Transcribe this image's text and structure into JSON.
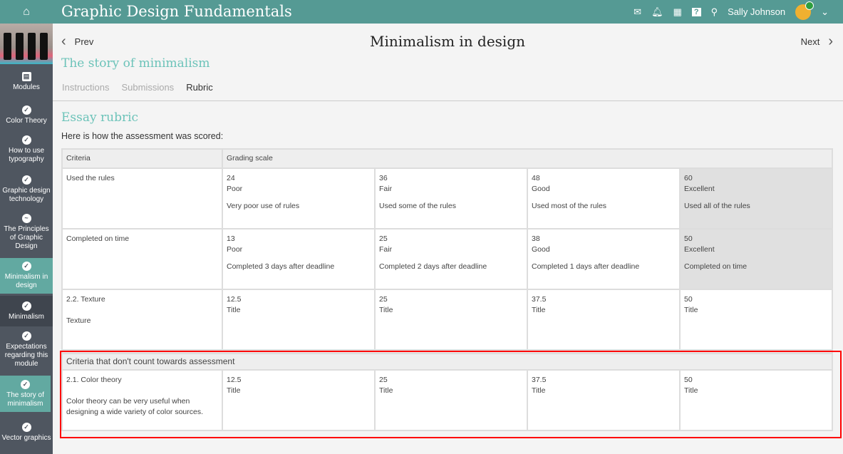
{
  "app": {
    "title": "Graphic Design Fundamentals",
    "user": "Sally Johnson",
    "icons": [
      "home-icon",
      "mail-icon",
      "bell-icon",
      "calendar-icon",
      "help-icon",
      "search-icon",
      "chevron-down-icon"
    ]
  },
  "sidebar": {
    "items": [
      {
        "label": "Modules",
        "icon": "notebook-icon"
      },
      {
        "label": "Color Theory",
        "icon": "check-circle-icon"
      },
      {
        "label": "How to use typography",
        "icon": "check-circle-icon"
      },
      {
        "label": "Graphic design technology",
        "icon": "check-circle-icon"
      },
      {
        "label": "The Principles of Graphic Design",
        "icon": "progress-circle-icon"
      },
      {
        "label": "Minimalism in design",
        "icon": "check-circle-icon"
      },
      {
        "label": "Minimalism",
        "icon": "check-circle-icon"
      },
      {
        "label": "Expectations regarding this module",
        "icon": "check-circle-icon"
      },
      {
        "label": "The story of minimalism",
        "icon": "check-circle-icon"
      },
      {
        "label": "Vector graphics",
        "icon": "check-circle-icon"
      }
    ]
  },
  "nav": {
    "prev": "Prev",
    "next": "Next",
    "page_title": "Minimalism in design",
    "subtitle": "The story of minimalism"
  },
  "tabs": [
    {
      "label": "Instructions"
    },
    {
      "label": "Submissions"
    },
    {
      "label": "Rubric",
      "active": true
    }
  ],
  "rubric": {
    "title": "Essay rubric",
    "intro": "Here is how the assessment was scored:",
    "headers": [
      "Criteria",
      "Grading scale"
    ],
    "rows": [
      {
        "criteria": "Used the rules",
        "desc": "",
        "levels": [
          {
            "score": "24",
            "label": "Poor",
            "desc": "Very poor use of rules"
          },
          {
            "score": "36",
            "label": "Fair",
            "desc": "Used some of the rules"
          },
          {
            "score": "48",
            "label": "Good",
            "desc": "Used most of the rules"
          },
          {
            "score": "60",
            "label": "Excellent",
            "desc": "Used all of the rules",
            "selected": true
          }
        ]
      },
      {
        "criteria": "Completed on time",
        "desc": "",
        "levels": [
          {
            "score": "13",
            "label": "Poor",
            "desc": "Completed 3 days after deadline"
          },
          {
            "score": "25",
            "label": "Fair",
            "desc": "Completed 2 days after deadline"
          },
          {
            "score": "38",
            "label": "Good",
            "desc": "Completed 1 days after deadline"
          },
          {
            "score": "50",
            "label": "Excellent",
            "desc": "Completed on time",
            "selected": true
          }
        ]
      },
      {
        "criteria": "2.2. Texture",
        "desc": "Texture",
        "levels": [
          {
            "score": "12.5",
            "label": "Title",
            "desc": ""
          },
          {
            "score": "25",
            "label": "Title",
            "desc": ""
          },
          {
            "score": "37.5",
            "label": "Title",
            "desc": ""
          },
          {
            "score": "50",
            "label": "Title",
            "desc": ""
          }
        ]
      }
    ],
    "noncount_header": "Criteria that don't count towards assessment",
    "noncount_rows": [
      {
        "criteria": "2.1. Color theory",
        "desc": "Color theory can be very useful when designing a wide variety of color sources.",
        "levels": [
          {
            "score": "12.5",
            "label": "Title",
            "desc": ""
          },
          {
            "score": "25",
            "label": "Title",
            "desc": ""
          },
          {
            "score": "37.5",
            "label": "Title",
            "desc": ""
          },
          {
            "score": "50",
            "label": "Title",
            "desc": ""
          }
        ]
      }
    ]
  },
  "colors": {
    "topbar": "#559a94",
    "accent": "#6cc3b9",
    "sidebar": "#4f5660",
    "sidebar_active": "#62a9a1",
    "highlight": "#ff0000"
  }
}
